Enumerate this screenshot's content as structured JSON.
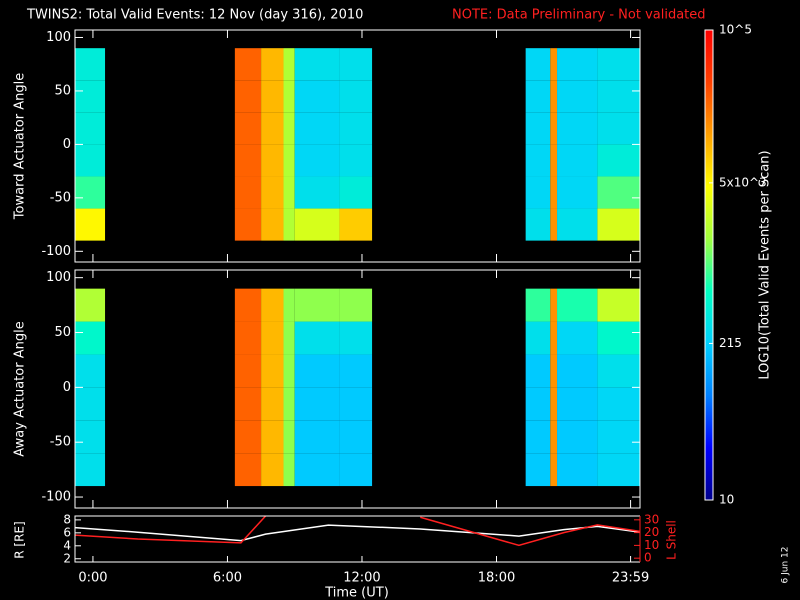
{
  "title": "TWINS2: Total Valid Events: 12 Nov (day 316), 2010",
  "note": "NOTE: Data Preliminary - Not validated",
  "date_stamp": "6 Jun 12",
  "colorbar": {
    "label": "LOG10(Total Valid Events per Scan)",
    "lim": [
      10,
      100000
    ],
    "log": true,
    "colorscale": [
      "#00008b",
      "#0000ff",
      "#0080ff",
      "#00d0ff",
      "#00ffc0",
      "#a0ff40",
      "#ffff00",
      "#ffa000",
      "#ff4000",
      "#ff0000"
    ],
    "ticks": [
      10,
      215,
      {
        "value": 5000,
        "label": "5x10^3"
      },
      {
        "value": 100000,
        "label": "10^5"
      }
    ]
  },
  "chart_data": [
    {
      "type": "heatmap",
      "y_label": "Toward Actuator Angle",
      "xlim": [
        -0.8,
        24.4
      ],
      "xticks": [
        0,
        6,
        12,
        18,
        23.98
      ],
      "ylim": [
        -110,
        107
      ],
      "yticks": [
        -100,
        -50,
        0,
        50,
        100
      ],
      "y_edges": [
        -90,
        -60,
        -30,
        0,
        30,
        60,
        90
      ],
      "segments": [
        {
          "x_edges": [
            -0.8,
            0.54
          ],
          "z": [
            [
              5000,
              800,
              400,
              400,
              400,
              400
            ]
          ]
        },
        {
          "x_edges": [
            6.33,
            7.5,
            8.5,
            9.0,
            11.0,
            12.45
          ],
          "z": [
            [
              25000,
              25000,
              25000,
              25000,
              25000,
              25000
            ],
            [
              10000,
              10000,
              10000,
              10000,
              10000,
              10000
            ],
            [
              2000,
              2000,
              2000,
              2000,
              2000,
              2000
            ],
            [
              3000,
              300,
              250,
              250,
              250,
              300
            ],
            [
              8000,
              400,
              300,
              300,
              300,
              300
            ]
          ]
        },
        {
          "x_edges": [
            19.3,
            20.4,
            20.7,
            22.5,
            24.4
          ],
          "z": [
            [
              300,
              250,
              250,
              250,
              250,
              250
            ],
            [
              15000,
              15000,
              15000,
              15000,
              15000,
              15000
            ],
            [
              300,
              250,
              250,
              250,
              250,
              250
            ],
            [
              3000,
              1000,
              400,
              300,
              300,
              300
            ]
          ]
        }
      ]
    },
    {
      "type": "heatmap",
      "y_label": "Away Actuator Angle",
      "xlim": [
        -0.8,
        24.4
      ],
      "xticks": [
        0,
        6,
        12,
        18,
        23.98
      ],
      "ylim": [
        -110,
        107
      ],
      "yticks": [
        -100,
        -50,
        0,
        50,
        100
      ],
      "y_edges": [
        -90,
        -60,
        -30,
        0,
        30,
        60,
        90
      ],
      "segments": [
        {
          "x_edges": [
            -0.8,
            0.54
          ],
          "z": [
            [
              300,
              300,
              300,
              300,
              500,
              2000
            ]
          ]
        },
        {
          "x_edges": [
            6.33,
            7.5,
            8.5,
            9.0,
            11.0,
            12.45
          ],
          "z": [
            [
              25000,
              25000,
              25000,
              25000,
              25000,
              25000
            ],
            [
              10000,
              10000,
              10000,
              10000,
              10000,
              10000
            ],
            [
              1500,
              1500,
              1500,
              1500,
              1500,
              1500
            ],
            [
              200,
              200,
              200,
              200,
              300,
              1500
            ],
            [
              200,
              200,
              200,
              200,
              300,
              1500
            ]
          ]
        },
        {
          "x_edges": [
            19.3,
            20.4,
            20.7,
            22.5,
            24.4
          ],
          "z": [
            [
              200,
              200,
              200,
              200,
              300,
              800
            ],
            [
              15000,
              15000,
              15000,
              15000,
              15000,
              15000
            ],
            [
              200,
              200,
              200,
              200,
              250,
              700
            ],
            [
              250,
              250,
              250,
              300,
              500,
              2500
            ]
          ]
        }
      ]
    },
    {
      "type": "line",
      "x_label": "Time (UT)",
      "y_label": "R [RE]",
      "y2_label": "L Shell",
      "xlim": [
        -0.8,
        24.4
      ],
      "xticks": [
        {
          "value": 0,
          "label": "0:00"
        },
        {
          "value": 6,
          "label": "6:00"
        },
        {
          "value": 12,
          "label": "12:00"
        },
        {
          "value": 18,
          "label": "18:00"
        },
        {
          "value": 23.98,
          "label": "23:59"
        }
      ],
      "ylim": [
        1.5,
        8.6
      ],
      "yticks": [
        2,
        4,
        6,
        8
      ],
      "y2lim": [
        -3,
        33
      ],
      "y2ticks": [
        0,
        10,
        20,
        30
      ],
      "x": [
        -0.8,
        2,
        6.6,
        7.7,
        10.5,
        14.6,
        19,
        21,
        22.5,
        24.4
      ],
      "series": [
        {
          "name": "R",
          "color": "#ffffff",
          "values": [
            6.8,
            6.1,
            4.8,
            5.8,
            7.2,
            6.6,
            5.5,
            6.5,
            7,
            6.1
          ]
        },
        {
          "name": "L Shell",
          "color": "#ff2020",
          "axis": "y2",
          "values": [
            18,
            15,
            12,
            33,
            null,
            32,
            10,
            20,
            26,
            21
          ]
        }
      ]
    }
  ]
}
